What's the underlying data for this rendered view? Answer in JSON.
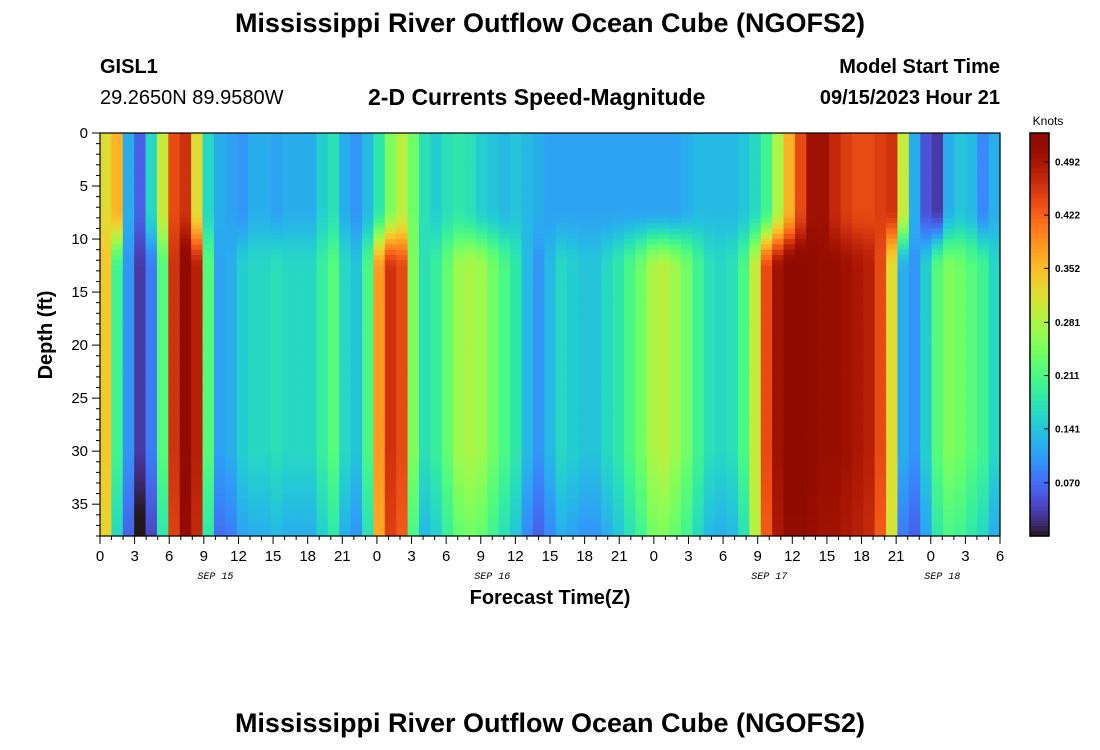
{
  "header": {
    "title": "Mississippi River Outflow Ocean Cube (NGOFS2)",
    "station_id": "GISL1",
    "coordinates": "29.2650N  89.9580W",
    "plot_title": "2-D Currents Speed-Magnitude",
    "model_start_label": "Model Start Time",
    "model_start_value": "09/15/2023 Hour 21"
  },
  "footer": {
    "title": "Mississippi River Outflow Ocean Cube (NGOFS2)"
  },
  "chart_data": {
    "type": "heatmap",
    "xlabel": "Forecast Time(Z)",
    "ylabel": "Depth (ft)",
    "xlim": [
      0,
      78
    ],
    "ylim": [
      38,
      0
    ],
    "x_tick_labels": [
      "0",
      "3",
      "6",
      "9",
      "12",
      "15",
      "18",
      "21",
      "0",
      "3",
      "6",
      "9",
      "12",
      "15",
      "18",
      "21",
      "0",
      "3",
      "6",
      "9",
      "12",
      "15",
      "18",
      "21",
      "0",
      "3",
      "6"
    ],
    "y_tick_labels": [
      "0",
      "5",
      "10",
      "15",
      "20",
      "25",
      "30",
      "35"
    ],
    "y_ticks": [
      0,
      5,
      10,
      15,
      20,
      25,
      30,
      35
    ],
    "date_labels": [
      {
        "label": "SEP 15",
        "x": 10
      },
      {
        "label": "SEP 16",
        "x": 34
      },
      {
        "label": "SEP 17",
        "x": 58
      },
      {
        "label": "SEP 18",
        "x": 73
      }
    ],
    "colorbar": {
      "unit": "Knots",
      "min": 0.0,
      "max": 0.53,
      "tick_labels": [
        "0.492",
        "0.422",
        "0.352",
        "0.281",
        "0.211",
        "0.141",
        "0.070"
      ],
      "tick_values": [
        0.492,
        0.422,
        0.352,
        0.281,
        0.211,
        0.141,
        0.07
      ]
    },
    "shallow_profile_0to9ft": [
      0.32,
      0.36,
      0.12,
      0.06,
      0.16,
      0.3,
      0.44,
      0.46,
      0.32,
      0.16,
      0.12,
      0.11,
      0.1,
      0.12,
      0.12,
      0.11,
      0.12,
      0.12,
      0.12,
      0.15,
      0.17,
      0.12,
      0.1,
      0.13,
      0.18,
      0.25,
      0.29,
      0.24,
      0.17,
      0.15,
      0.17,
      0.18,
      0.17,
      0.15,
      0.14,
      0.13,
      0.14,
      0.13,
      0.12,
      0.11,
      0.11,
      0.11,
      0.11,
      0.11,
      0.11,
      0.11,
      0.11,
      0.11,
      0.11,
      0.11,
      0.11,
      0.12,
      0.13,
      0.13,
      0.13,
      0.13,
      0.14,
      0.16,
      0.2,
      0.28,
      0.36,
      0.44,
      0.5,
      0.5,
      0.47,
      0.45,
      0.44,
      0.44,
      0.45,
      0.46,
      0.3,
      0.12,
      0.05,
      0.03,
      0.12,
      0.14,
      0.13,
      0.09,
      0.12
    ],
    "deep_profile_12to38ft": [
      0.34,
      0.2,
      0.1,
      0.03,
      0.08,
      0.22,
      0.46,
      0.53,
      0.48,
      0.22,
      0.11,
      0.12,
      0.15,
      0.16,
      0.16,
      0.17,
      0.16,
      0.16,
      0.16,
      0.19,
      0.22,
      0.16,
      0.14,
      0.21,
      0.38,
      0.46,
      0.44,
      0.25,
      0.17,
      0.19,
      0.23,
      0.27,
      0.28,
      0.27,
      0.24,
      0.21,
      0.18,
      0.13,
      0.1,
      0.13,
      0.16,
      0.15,
      0.14,
      0.14,
      0.16,
      0.18,
      0.21,
      0.24,
      0.28,
      0.29,
      0.27,
      0.24,
      0.2,
      0.17,
      0.16,
      0.17,
      0.21,
      0.3,
      0.44,
      0.5,
      0.53,
      0.53,
      0.52,
      0.51,
      0.51,
      0.5,
      0.49,
      0.48,
      0.44,
      0.32,
      0.12,
      0.1,
      0.15,
      0.22,
      0.25,
      0.24,
      0.22,
      0.2,
      0.16
    ]
  }
}
